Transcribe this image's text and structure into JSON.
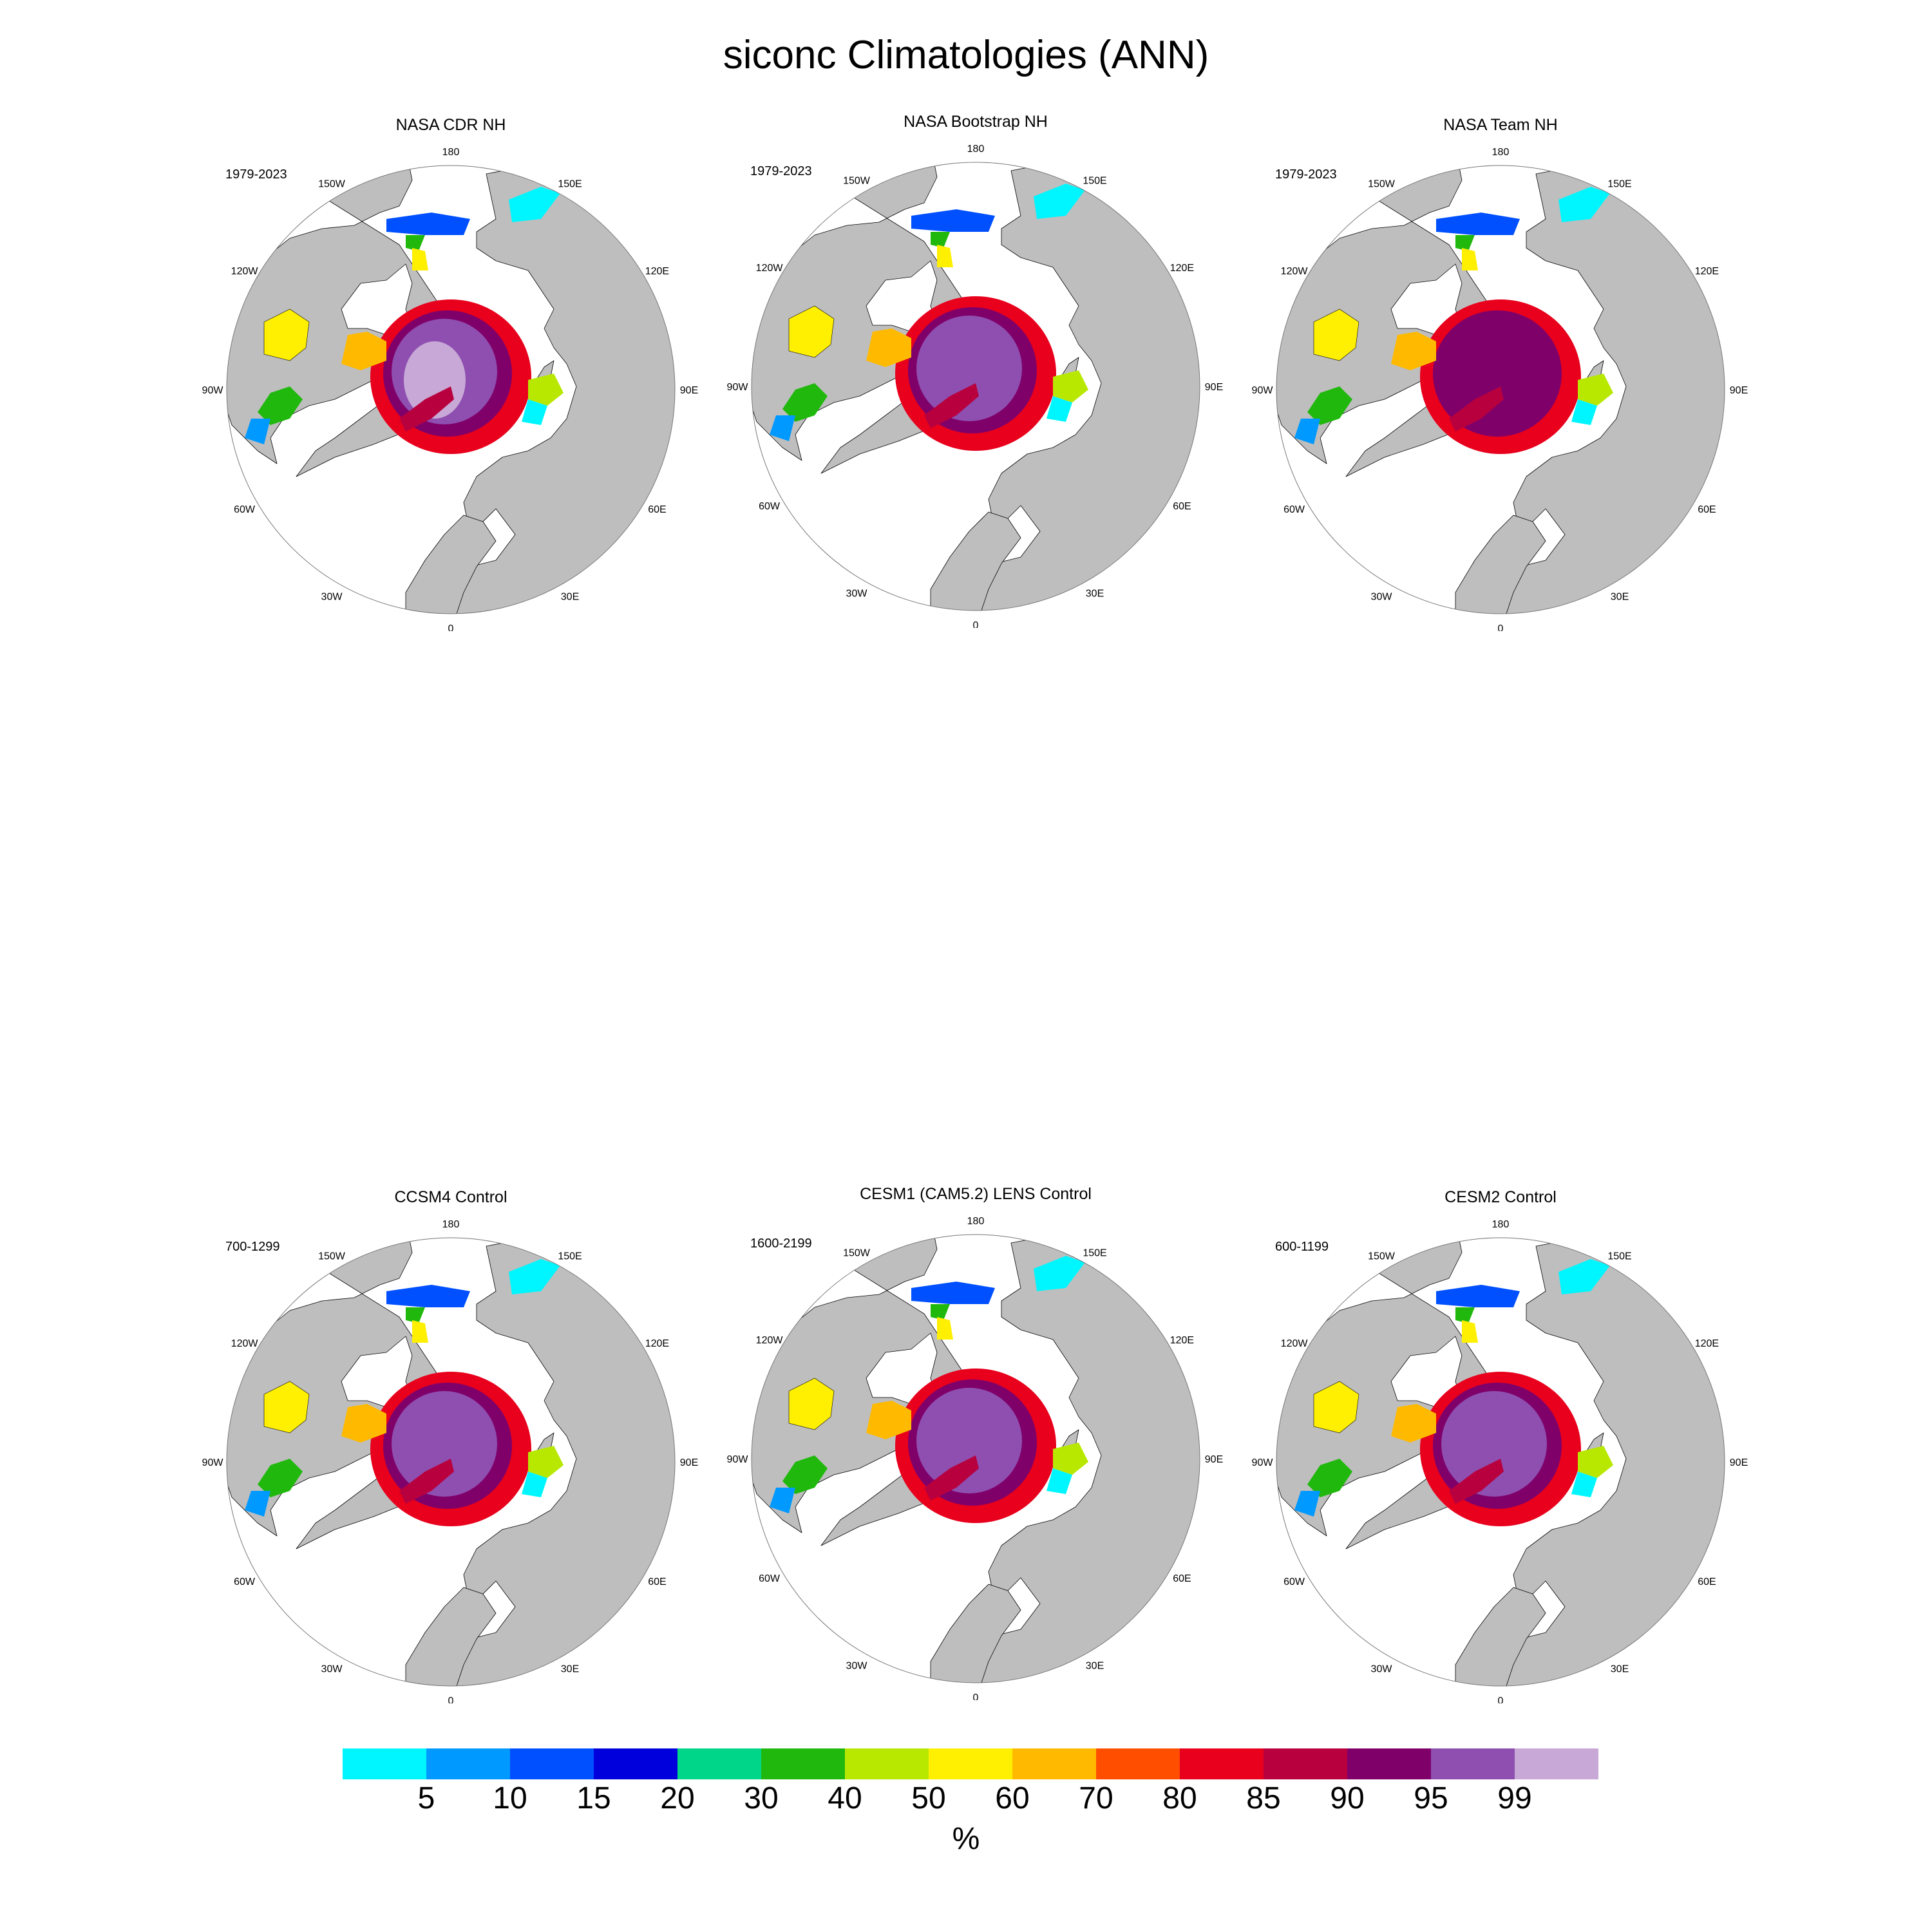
{
  "title": "siconc Climatologies (ANN)",
  "panels": [
    {
      "title": "NASA CDR NH",
      "years": "1979-2023",
      "core": "#c8a8d6",
      "core2": "#8e4fb0",
      "profile": "cdr"
    },
    {
      "title": "NASA Bootstrap NH",
      "years": "1979-2023",
      "core": "#8e4fb0",
      "core2": "#8e4fb0",
      "profile": "bootstrap"
    },
    {
      "title": "NASA Team NH",
      "years": "1979-2023",
      "core": "#80006a",
      "core2": "#80006a",
      "profile": "team"
    },
    {
      "title": "CCSM4 Control",
      "years": "700-1299",
      "core": "#8e4fb0",
      "core2": "#8e4fb0",
      "profile": "model"
    },
    {
      "title": "CESM1 (CAM5.2) LENS Control",
      "years": "1600-2199",
      "core": "#8e4fb0",
      "core2": "#8e4fb0",
      "profile": "model"
    },
    {
      "title": "CESM2 Control",
      "years": "600-1199",
      "core": "#8e4fb0",
      "core2": "#8e4fb0",
      "profile": "model"
    }
  ],
  "map_labels": {
    "longitudes": [
      "180",
      "150E",
      "120E",
      "90E",
      "60E",
      "30E",
      "0",
      "30W",
      "60W",
      "90W",
      "120W",
      "150W"
    ]
  },
  "colorbar": {
    "colors": [
      "#00f6ff",
      "#0099ff",
      "#0050ff",
      "#0000dc",
      "#00d68a",
      "#21b80e",
      "#b8e800",
      "#ffef00",
      "#ffba00",
      "#ff4e00",
      "#e8001c",
      "#b8003e",
      "#80006a",
      "#8e4fb0",
      "#c8a8d6"
    ],
    "labels": [
      "5",
      "10",
      "15",
      "20",
      "30",
      "40",
      "50",
      "60",
      "70",
      "80",
      "85",
      "90",
      "95",
      "99"
    ],
    "units": "%"
  },
  "colors": {
    "land": "#bebebe",
    "ocean": "#ffffff",
    "coast": "#000000"
  }
}
